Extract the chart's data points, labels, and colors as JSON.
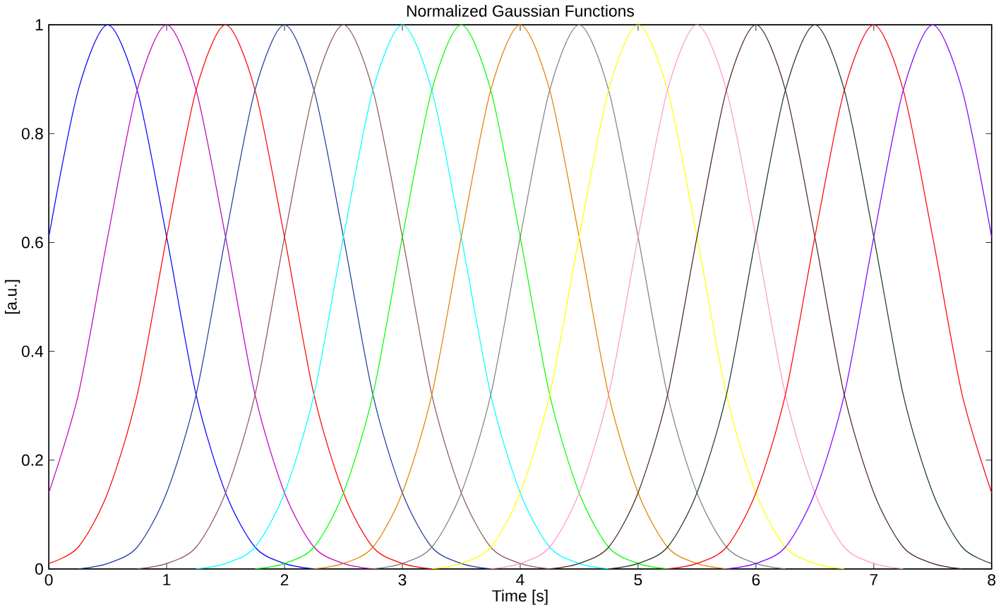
{
  "chart_data": {
    "type": "line",
    "title": "Normalized Gaussian Functions",
    "xlabel": "Time [s]",
    "ylabel": "[a.u.]",
    "xlim": [
      0,
      8
    ],
    "ylim": [
      0,
      1
    ],
    "xticks": [
      0,
      1,
      2,
      3,
      4,
      5,
      6,
      7,
      8
    ],
    "yticks": [
      0,
      0.2,
      0.4,
      0.6,
      0.8,
      1
    ],
    "marker": "none",
    "line_style": "solid",
    "series": [
      {
        "color": "#0000ff",
        "x": [
          0,
          0.25,
          0.5,
          0.75,
          1,
          1.25,
          1.5,
          1.75,
          2,
          2.25
        ],
        "values": [
          0.61,
          0.88,
          1,
          0.88,
          0.61,
          0.32,
          0.14,
          0.04,
          0.01,
          0
        ]
      },
      {
        "color": "#bf00bf",
        "x": [
          0,
          0.25,
          0.5,
          0.75,
          1,
          1.25,
          1.5,
          1.75,
          2,
          2.25,
          2.5,
          2.75
        ],
        "values": [
          0.14,
          0.32,
          0.61,
          0.88,
          1,
          0.88,
          0.61,
          0.32,
          0.14,
          0.04,
          0.01,
          0
        ]
      },
      {
        "color": "#ff0000",
        "x": [
          0,
          0.25,
          0.5,
          0.75,
          1,
          1.25,
          1.5,
          1.75,
          2,
          2.25,
          2.5,
          2.75,
          3,
          3.25
        ],
        "values": [
          0.01,
          0.04,
          0.14,
          0.32,
          0.61,
          0.88,
          1,
          0.88,
          0.61,
          0.32,
          0.14,
          0.04,
          0.01,
          0
        ]
      },
      {
        "color": "#203c99",
        "x": [
          0.25,
          0.5,
          0.75,
          1,
          1.25,
          1.5,
          1.75,
          2,
          2.25,
          2.5,
          2.75,
          3,
          3.25,
          3.5,
          3.75
        ],
        "values": [
          0,
          0.01,
          0.04,
          0.14,
          0.32,
          0.61,
          0.88,
          1,
          0.88,
          0.61,
          0.32,
          0.14,
          0.04,
          0.01,
          0
        ]
      },
      {
        "color": "#8b5a50",
        "x": [
          0.75,
          1,
          1.25,
          1.5,
          1.75,
          2,
          2.25,
          2.5,
          2.75,
          3,
          3.25,
          3.5,
          3.75,
          4,
          4.25
        ],
        "values": [
          0,
          0.01,
          0.04,
          0.14,
          0.32,
          0.61,
          0.88,
          1,
          0.88,
          0.61,
          0.32,
          0.14,
          0.04,
          0.01,
          0
        ]
      },
      {
        "color": "#00ffff",
        "x": [
          1.25,
          1.5,
          1.75,
          2,
          2.25,
          2.5,
          2.75,
          3,
          3.25,
          3.5,
          3.75,
          4,
          4.25,
          4.5,
          4.75
        ],
        "values": [
          0,
          0.01,
          0.04,
          0.14,
          0.32,
          0.61,
          0.88,
          1,
          0.88,
          0.61,
          0.32,
          0.14,
          0.04,
          0.01,
          0
        ]
      },
      {
        "color": "#00ff00",
        "x": [
          1.75,
          2,
          2.25,
          2.5,
          2.75,
          3,
          3.25,
          3.5,
          3.75,
          4,
          4.25,
          4.5,
          4.75,
          5,
          5.25
        ],
        "values": [
          0,
          0.01,
          0.04,
          0.14,
          0.32,
          0.61,
          0.88,
          1,
          0.88,
          0.61,
          0.32,
          0.14,
          0.04,
          0.01,
          0
        ]
      },
      {
        "color": "#e08000",
        "x": [
          2.25,
          2.5,
          2.75,
          3,
          3.25,
          3.5,
          3.75,
          4,
          4.25,
          4.5,
          4.75,
          5,
          5.25,
          5.5,
          5.75
        ],
        "values": [
          0,
          0.01,
          0.04,
          0.14,
          0.32,
          0.61,
          0.88,
          1,
          0.88,
          0.61,
          0.32,
          0.14,
          0.04,
          0.01,
          0
        ]
      },
      {
        "color": "#808080",
        "x": [
          2.75,
          3,
          3.25,
          3.5,
          3.75,
          4,
          4.25,
          4.5,
          4.75,
          5,
          5.25,
          5.5,
          5.75,
          6,
          6.25
        ],
        "values": [
          0,
          0.01,
          0.04,
          0.14,
          0.32,
          0.61,
          0.88,
          1,
          0.88,
          0.61,
          0.32,
          0.14,
          0.04,
          0.01,
          0
        ]
      },
      {
        "color": "#ffff00",
        "x": [
          3.25,
          3.5,
          3.75,
          4,
          4.25,
          4.5,
          4.75,
          5,
          5.25,
          5.5,
          5.75,
          6,
          6.25,
          6.5,
          6.75
        ],
        "values": [
          0,
          0.01,
          0.04,
          0.14,
          0.32,
          0.61,
          0.88,
          1,
          0.88,
          0.61,
          0.32,
          0.14,
          0.04,
          0.01,
          0
        ]
      },
      {
        "color": "#ff99cc",
        "x": [
          3.75,
          4,
          4.25,
          4.5,
          4.75,
          5,
          5.25,
          5.5,
          5.75,
          6,
          6.25,
          6.5,
          6.75,
          7,
          7.25
        ],
        "values": [
          0,
          0.01,
          0.04,
          0.14,
          0.32,
          0.61,
          0.88,
          1,
          0.88,
          0.61,
          0.32,
          0.14,
          0.04,
          0.01,
          0
        ]
      },
      {
        "color": "#4a2a20",
        "x": [
          4.25,
          4.5,
          4.75,
          5,
          5.25,
          5.5,
          5.75,
          6,
          6.25,
          6.5,
          6.75,
          7,
          7.25,
          7.5,
          7.75
        ],
        "values": [
          0,
          0.01,
          0.04,
          0.14,
          0.32,
          0.61,
          0.88,
          1,
          0.88,
          0.61,
          0.32,
          0.14,
          0.04,
          0.01,
          0
        ]
      },
      {
        "color": "#1a3a2a",
        "x": [
          4.75,
          5,
          5.25,
          5.5,
          5.75,
          6,
          6.25,
          6.5,
          6.75,
          7,
          7.25,
          7.5,
          7.75,
          8
        ],
        "values": [
          0,
          0.01,
          0.04,
          0.14,
          0.32,
          0.61,
          0.88,
          1,
          0.88,
          0.61,
          0.32,
          0.14,
          0.04,
          0.01
        ]
      },
      {
        "color": "#ff0000",
        "x": [
          5.25,
          5.5,
          5.75,
          6,
          6.25,
          6.5,
          6.75,
          7,
          7.25,
          7.5,
          7.75,
          8
        ],
        "values": [
          0,
          0.01,
          0.04,
          0.14,
          0.32,
          0.61,
          0.88,
          1,
          0.88,
          0.61,
          0.32,
          0.14
        ]
      },
      {
        "color": "#8000ff",
        "x": [
          5.75,
          6,
          6.25,
          6.5,
          6.75,
          7,
          7.25,
          7.5,
          7.75,
          8
        ],
        "values": [
          0,
          0.01,
          0.04,
          0.14,
          0.32,
          0.61,
          0.88,
          1,
          0.88,
          0.61
        ]
      }
    ]
  }
}
